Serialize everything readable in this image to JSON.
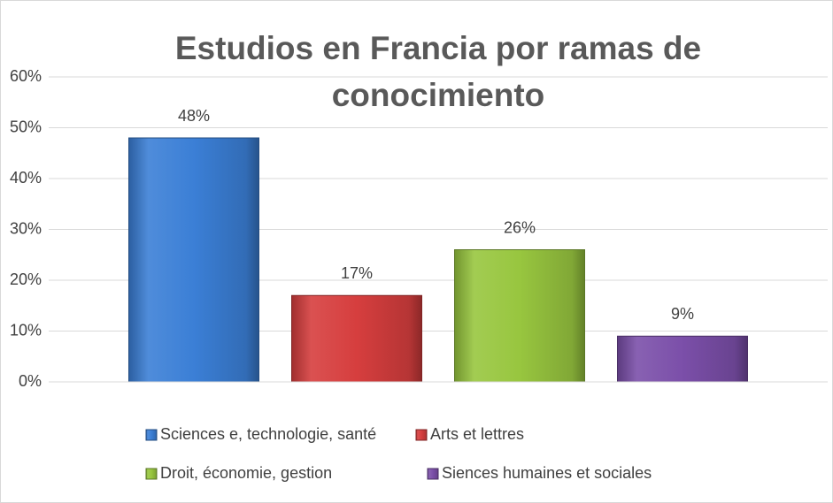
{
  "chart_data": {
    "type": "bar",
    "title": "Estudios en Francia por ramas de conocimiento",
    "categories": [
      null
    ],
    "series": [
      {
        "name": "Sciences e, technologie, santé",
        "color": "#3b7fd6",
        "values": [
          48
        ],
        "value_labels": [
          "48%"
        ]
      },
      {
        "name": "Arts et lettres",
        "color": "#d63e3e",
        "values": [
          17
        ],
        "value_labels": [
          "17%"
        ]
      },
      {
        "name": "Droit, économie, gestion",
        "color": "#98c63f",
        "values": [
          26
        ],
        "value_labels": [
          "26%"
        ]
      },
      {
        "name": "Siences humaines et sociales",
        "color": "#7b4fa9",
        "values": [
          9
        ],
        "value_labels": [
          "9%"
        ]
      }
    ],
    "ylim": [
      0,
      60
    ],
    "yticks": [
      {
        "value": 0,
        "label": "0%"
      },
      {
        "value": 10,
        "label": "10%"
      },
      {
        "value": 20,
        "label": "20%"
      },
      {
        "value": 30,
        "label": "30%"
      },
      {
        "value": 40,
        "label": "40%"
      },
      {
        "value": 50,
        "label": "50%"
      },
      {
        "value": 60,
        "label": "60%"
      }
    ],
    "grid": true,
    "legend": "bottom"
  }
}
